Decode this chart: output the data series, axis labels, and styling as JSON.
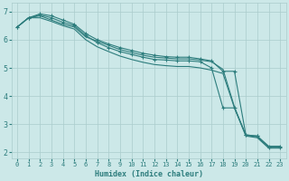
{
  "xlabel": "Humidex (Indice chaleur)",
  "ylabel": "",
  "bg_color": "#cce8e8",
  "grid_color": "#aacccc",
  "line_color": "#2d7d7d",
  "x_data": [
    0,
    1,
    2,
    3,
    4,
    5,
    6,
    7,
    8,
    9,
    10,
    11,
    12,
    13,
    14,
    15,
    16,
    17,
    18,
    19,
    20,
    21,
    22,
    23
  ],
  "lines": [
    {
      "y": [
        6.45,
        6.78,
        6.85,
        6.7,
        6.55,
        6.45,
        6.1,
        5.95,
        5.8,
        5.65,
        5.55,
        5.45,
        5.38,
        5.35,
        5.32,
        5.32,
        5.28,
        5.22,
        4.95,
        3.62,
        2.6,
        2.55,
        2.18,
        2.18
      ],
      "has_markers": false
    },
    {
      "y": [
        6.45,
        6.78,
        6.92,
        6.85,
        6.7,
        6.55,
        6.22,
        6.0,
        5.85,
        5.72,
        5.62,
        5.52,
        5.45,
        5.4,
        5.38,
        5.38,
        5.32,
        5.25,
        4.88,
        4.88,
        2.62,
        2.58,
        2.22,
        2.22
      ],
      "has_markers": true
    },
    {
      "y": [
        6.45,
        6.78,
        6.88,
        6.78,
        6.62,
        6.5,
        6.15,
        5.9,
        5.72,
        5.58,
        5.48,
        5.38,
        5.3,
        5.28,
        5.25,
        5.25,
        5.22,
        5.0,
        3.58,
        3.58,
        2.62,
        2.58,
        2.18,
        2.18
      ],
      "has_markers": true
    },
    {
      "y": [
        6.45,
        6.78,
        6.78,
        6.65,
        6.5,
        6.38,
        6.0,
        5.75,
        5.58,
        5.42,
        5.3,
        5.2,
        5.12,
        5.08,
        5.05,
        5.05,
        5.0,
        4.92,
        4.8,
        3.58,
        2.58,
        2.52,
        2.15,
        2.15
      ],
      "has_markers": false
    }
  ],
  "ylim": [
    1.8,
    7.3
  ],
  "xlim": [
    -0.5,
    23.5
  ],
  "yticks": [
    2,
    3,
    4,
    5,
    6,
    7
  ],
  "xticks": [
    0,
    1,
    2,
    3,
    4,
    5,
    6,
    7,
    8,
    9,
    10,
    11,
    12,
    13,
    14,
    15,
    16,
    17,
    18,
    19,
    20,
    21,
    22,
    23
  ],
  "marker": "+",
  "markersize": 3.0,
  "linewidth": 0.8
}
